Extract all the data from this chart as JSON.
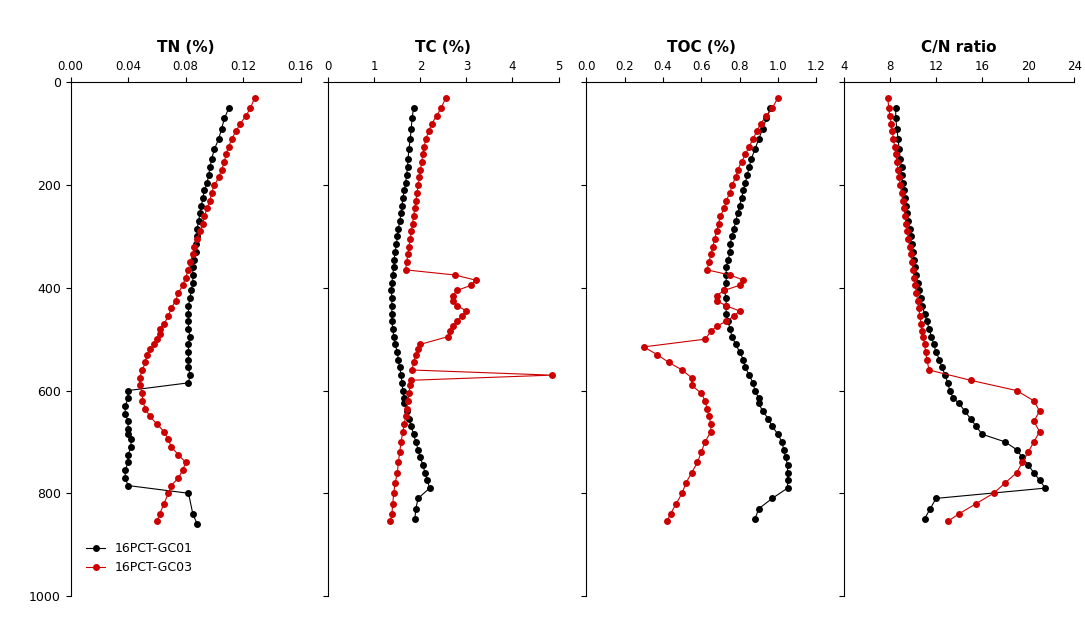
{
  "gc01_TN_depth": [
    50,
    70,
    90,
    110,
    130,
    150,
    165,
    180,
    195,
    210,
    225,
    240,
    255,
    270,
    285,
    300,
    315,
    330,
    345,
    360,
    375,
    390,
    405,
    420,
    435,
    450,
    465,
    480,
    495,
    510,
    525,
    540,
    555,
    570,
    585,
    600,
    615,
    630,
    645,
    660,
    675,
    685,
    695,
    710,
    725,
    740,
    755,
    770,
    785,
    800,
    840,
    860
  ],
  "gc01_TN_val": [
    0.11,
    0.107,
    0.105,
    0.103,
    0.1,
    0.098,
    0.097,
    0.096,
    0.095,
    0.093,
    0.092,
    0.091,
    0.09,
    0.089,
    0.088,
    0.088,
    0.087,
    0.087,
    0.086,
    0.085,
    0.085,
    0.085,
    0.084,
    0.083,
    0.082,
    0.082,
    0.082,
    0.082,
    0.083,
    0.082,
    0.082,
    0.082,
    0.082,
    0.083,
    0.082,
    0.04,
    0.04,
    0.038,
    0.038,
    0.04,
    0.04,
    0.04,
    0.042,
    0.042,
    0.04,
    0.04,
    0.038,
    0.038,
    0.04,
    0.082,
    0.085,
    0.088
  ],
  "gc03_TN_depth": [
    30,
    50,
    65,
    80,
    95,
    110,
    125,
    140,
    155,
    170,
    185,
    200,
    215,
    230,
    245,
    260,
    275,
    290,
    305,
    320,
    335,
    350,
    365,
    380,
    395,
    410,
    425,
    440,
    455,
    470,
    480,
    490,
    500,
    510,
    520,
    530,
    545,
    560,
    575,
    590,
    605,
    620,
    635,
    650,
    665,
    680,
    695,
    710,
    725,
    740,
    755,
    770,
    785,
    800,
    820,
    840,
    855
  ],
  "gc03_TN_val": [
    0.128,
    0.125,
    0.122,
    0.118,
    0.115,
    0.112,
    0.11,
    0.108,
    0.107,
    0.105,
    0.103,
    0.1,
    0.098,
    0.097,
    0.095,
    0.093,
    0.092,
    0.09,
    0.088,
    0.086,
    0.085,
    0.083,
    0.082,
    0.08,
    0.078,
    0.075,
    0.073,
    0.07,
    0.068,
    0.065,
    0.062,
    0.062,
    0.06,
    0.058,
    0.055,
    0.053,
    0.052,
    0.05,
    0.048,
    0.048,
    0.05,
    0.05,
    0.052,
    0.055,
    0.06,
    0.065,
    0.068,
    0.07,
    0.075,
    0.08,
    0.078,
    0.075,
    0.07,
    0.068,
    0.065,
    0.062,
    0.06
  ],
  "gc01_TC_depth": [
    50,
    70,
    90,
    110,
    130,
    150,
    165,
    180,
    195,
    210,
    225,
    240,
    255,
    270,
    285,
    300,
    315,
    330,
    345,
    360,
    375,
    390,
    405,
    420,
    435,
    450,
    465,
    480,
    495,
    510,
    525,
    540,
    555,
    570,
    585,
    600,
    615,
    625,
    640,
    655,
    670,
    685,
    700,
    715,
    730,
    745,
    760,
    775,
    790,
    810,
    830,
    850
  ],
  "gc01_TC_val": [
    1.85,
    1.82,
    1.8,
    1.78,
    1.75,
    1.73,
    1.72,
    1.7,
    1.68,
    1.65,
    1.62,
    1.6,
    1.58,
    1.55,
    1.52,
    1.5,
    1.48,
    1.45,
    1.43,
    1.42,
    1.4,
    1.38,
    1.37,
    1.38,
    1.38,
    1.38,
    1.38,
    1.4,
    1.42,
    1.45,
    1.5,
    1.52,
    1.55,
    1.58,
    1.6,
    1.62,
    1.65,
    1.65,
    1.7,
    1.75,
    1.8,
    1.85,
    1.9,
    1.95,
    2.0,
    2.05,
    2.1,
    2.15,
    2.2,
    1.95,
    1.9,
    1.88
  ],
  "gc03_TC_depth": [
    30,
    50,
    65,
    80,
    95,
    110,
    125,
    140,
    155,
    170,
    185,
    200,
    215,
    230,
    245,
    260,
    275,
    290,
    305,
    320,
    335,
    350,
    365,
    375,
    385,
    395,
    405,
    415,
    425,
    435,
    445,
    455,
    465,
    475,
    485,
    495,
    510,
    520,
    530,
    545,
    560,
    570,
    580,
    590,
    605,
    620,
    635,
    650,
    665,
    680,
    700,
    720,
    740,
    760,
    780,
    800,
    820,
    840,
    855
  ],
  "gc03_TC_val": [
    2.55,
    2.45,
    2.35,
    2.25,
    2.18,
    2.12,
    2.08,
    2.05,
    2.03,
    2.0,
    1.98,
    1.95,
    1.93,
    1.9,
    1.88,
    1.85,
    1.83,
    1.8,
    1.78,
    1.75,
    1.73,
    1.7,
    1.68,
    2.75,
    3.2,
    3.1,
    2.8,
    2.7,
    2.7,
    2.8,
    3.0,
    2.9,
    2.8,
    2.7,
    2.65,
    2.6,
    2.0,
    1.95,
    1.9,
    1.85,
    1.82,
    4.85,
    1.8,
    1.78,
    1.75,
    1.73,
    1.7,
    1.68,
    1.65,
    1.62,
    1.58,
    1.55,
    1.52,
    1.5,
    1.45,
    1.42,
    1.4,
    1.38,
    1.35
  ],
  "gc01_TOC_depth": [
    50,
    70,
    90,
    110,
    130,
    150,
    165,
    180,
    195,
    210,
    225,
    240,
    255,
    270,
    285,
    300,
    315,
    330,
    345,
    360,
    375,
    390,
    405,
    420,
    435,
    450,
    465,
    480,
    495,
    510,
    525,
    540,
    555,
    570,
    585,
    600,
    615,
    625,
    640,
    655,
    670,
    685,
    700,
    715,
    730,
    745,
    760,
    775,
    790,
    810,
    830,
    850
  ],
  "gc01_TOC_val": [
    0.96,
    0.94,
    0.92,
    0.9,
    0.88,
    0.86,
    0.85,
    0.84,
    0.83,
    0.82,
    0.81,
    0.8,
    0.79,
    0.78,
    0.77,
    0.76,
    0.75,
    0.75,
    0.74,
    0.73,
    0.73,
    0.73,
    0.72,
    0.73,
    0.73,
    0.73,
    0.74,
    0.75,
    0.76,
    0.78,
    0.8,
    0.82,
    0.83,
    0.85,
    0.87,
    0.88,
    0.9,
    0.9,
    0.92,
    0.95,
    0.97,
    1.0,
    1.02,
    1.03,
    1.04,
    1.05,
    1.05,
    1.05,
    1.05,
    0.97,
    0.9,
    0.88
  ],
  "gc03_TOC_depth": [
    30,
    50,
    65,
    80,
    95,
    110,
    125,
    140,
    155,
    170,
    185,
    200,
    215,
    230,
    245,
    260,
    275,
    290,
    305,
    320,
    335,
    350,
    365,
    375,
    385,
    395,
    405,
    415,
    425,
    435,
    445,
    455,
    465,
    475,
    485,
    500,
    515,
    530,
    545,
    560,
    575,
    590,
    605,
    620,
    635,
    650,
    665,
    680,
    700,
    720,
    740,
    760,
    780,
    800,
    820,
    840,
    855
  ],
  "gc03_TOC_val": [
    1.0,
    0.97,
    0.94,
    0.91,
    0.89,
    0.87,
    0.85,
    0.83,
    0.81,
    0.79,
    0.78,
    0.76,
    0.75,
    0.73,
    0.72,
    0.7,
    0.69,
    0.68,
    0.67,
    0.66,
    0.65,
    0.64,
    0.63,
    0.75,
    0.82,
    0.8,
    0.72,
    0.68,
    0.68,
    0.73,
    0.8,
    0.77,
    0.73,
    0.68,
    0.65,
    0.62,
    0.3,
    0.37,
    0.43,
    0.5,
    0.55,
    0.55,
    0.6,
    0.62,
    0.63,
    0.64,
    0.65,
    0.65,
    0.62,
    0.6,
    0.58,
    0.55,
    0.52,
    0.5,
    0.47,
    0.44,
    0.42
  ],
  "gc01_CN_depth": [
    50,
    70,
    90,
    110,
    130,
    150,
    165,
    180,
    195,
    210,
    225,
    240,
    255,
    270,
    285,
    300,
    315,
    330,
    345,
    360,
    375,
    390,
    405,
    420,
    435,
    450,
    465,
    480,
    495,
    510,
    525,
    540,
    555,
    570,
    585,
    600,
    615,
    625,
    640,
    655,
    670,
    685,
    700,
    715,
    730,
    745,
    760,
    775,
    790,
    810,
    830,
    850
  ],
  "gc01_CN_val": [
    8.5,
    8.5,
    8.6,
    8.7,
    8.8,
    8.9,
    9.0,
    9.0,
    9.1,
    9.2,
    9.3,
    9.4,
    9.5,
    9.6,
    9.7,
    9.8,
    9.9,
    10.0,
    10.1,
    10.2,
    10.3,
    10.4,
    10.5,
    10.7,
    10.8,
    11.0,
    11.2,
    11.4,
    11.6,
    11.8,
    12.0,
    12.3,
    12.5,
    12.8,
    13.0,
    13.2,
    13.5,
    14.0,
    14.5,
    15.0,
    15.5,
    16.0,
    18.0,
    19.0,
    19.5,
    20.0,
    20.5,
    21.0,
    21.5,
    12.0,
    11.5,
    11.0
  ],
  "gc03_CN_depth": [
    30,
    50,
    65,
    80,
    95,
    110,
    125,
    140,
    155,
    170,
    185,
    200,
    215,
    230,
    245,
    260,
    275,
    290,
    305,
    320,
    335,
    350,
    365,
    380,
    395,
    410,
    425,
    440,
    455,
    470,
    485,
    495,
    510,
    525,
    540,
    560,
    580,
    600,
    620,
    640,
    660,
    680,
    700,
    720,
    740,
    760,
    780,
    800,
    820,
    840,
    855
  ],
  "gc03_CN_val": [
    7.8,
    7.9,
    8.0,
    8.1,
    8.2,
    8.3,
    8.4,
    8.5,
    8.6,
    8.7,
    8.8,
    8.9,
    9.0,
    9.1,
    9.2,
    9.3,
    9.4,
    9.5,
    9.6,
    9.7,
    9.8,
    9.9,
    10.0,
    10.1,
    10.2,
    10.3,
    10.4,
    10.5,
    10.6,
    10.7,
    10.8,
    10.9,
    11.0,
    11.1,
    11.2,
    11.4,
    15.0,
    19.0,
    20.5,
    21.0,
    20.5,
    21.0,
    20.5,
    20.0,
    19.5,
    19.0,
    18.0,
    17.0,
    15.5,
    14.0,
    13.0
  ],
  "TN_xlim": [
    0,
    0.16
  ],
  "TN_xticks": [
    0,
    0.04,
    0.08,
    0.12,
    0.16
  ],
  "TC_xlim": [
    0,
    5
  ],
  "TC_xticks": [
    0,
    1,
    2,
    3,
    4,
    5
  ],
  "TOC_xlim": [
    0,
    1.2
  ],
  "TOC_xticks": [
    0,
    0.2,
    0.4,
    0.6,
    0.8,
    1.0,
    1.2
  ],
  "CN_xlim": [
    4,
    24
  ],
  "CN_xticks": [
    4,
    8,
    12,
    16,
    20,
    24
  ],
  "ylim": [
    1000,
    0
  ],
  "yticks": [
    0,
    200,
    400,
    600,
    800,
    1000
  ],
  "color_gc01": "#000000",
  "color_gc03": "#cc0000",
  "marker_size": 5,
  "line_width": 0.8,
  "titles": [
    "TN (%)",
    "TC (%)",
    "TOC (%)",
    "C/N ratio"
  ],
  "legend_labels": [
    "16PCT-GC01",
    "16PCT-GC03"
  ]
}
